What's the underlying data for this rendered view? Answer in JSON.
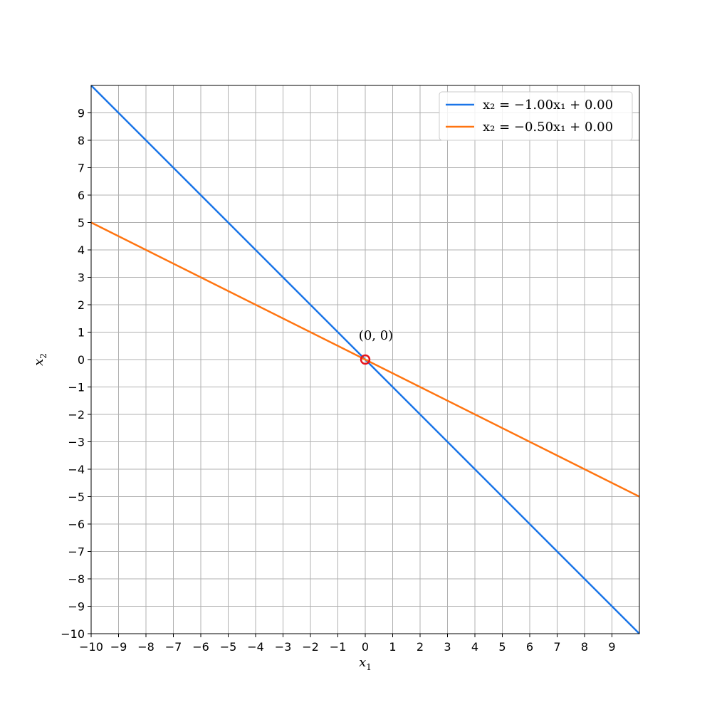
{
  "chart_data": {
    "type": "line",
    "xlabel": "x",
    "xlabel_sub": "1",
    "ylabel": "x",
    "ylabel_sub": "2",
    "xlim": [
      -10,
      10
    ],
    "ylim": [
      -10,
      10
    ],
    "x_ticks": [
      -10,
      -9,
      -8,
      -7,
      -6,
      -5,
      -4,
      -3,
      -2,
      -1,
      0,
      1,
      2,
      3,
      4,
      5,
      6,
      7,
      8,
      9
    ],
    "y_ticks": [
      -10,
      -9,
      -8,
      -7,
      -6,
      -5,
      -4,
      -3,
      -2,
      -1,
      0,
      1,
      2,
      3,
      4,
      5,
      6,
      7,
      8,
      9
    ],
    "grid": true,
    "legend_position": "top-right",
    "series": [
      {
        "name": "x₂ = −1.00x₁ + 0.00",
        "color": "#1a75e8",
        "x": [
          -10,
          10
        ],
        "y": [
          10,
          -10
        ]
      },
      {
        "name": "x₂ = −0.50x₁ + 0.00",
        "color": "#ff7410",
        "x": [
          -10,
          10
        ],
        "y": [
          5,
          -5
        ]
      }
    ],
    "points": [
      {
        "x": 0,
        "y": 0,
        "label": "(0, 0)",
        "color": "#e8141c"
      }
    ]
  }
}
